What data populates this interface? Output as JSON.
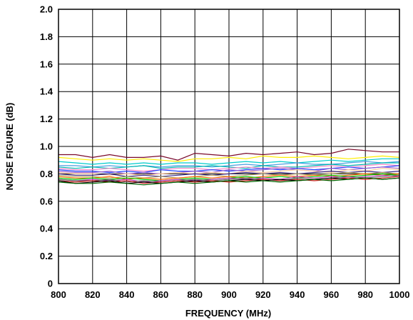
{
  "chart_data": {
    "type": "line",
    "xlabel": "FREQUENCY (MHz)",
    "ylabel": "NOISE FIGURE (dB)",
    "xlim": [
      800,
      1000
    ],
    "ylim": [
      0,
      2.0
    ],
    "x_ticks": [
      "800",
      "820",
      "840",
      "860",
      "880",
      "900",
      "920",
      "940",
      "960",
      "980",
      "1000"
    ],
    "y_ticks": [
      "0",
      "0.2",
      "0.4",
      "0.6",
      "0.8",
      "1.0",
      "1.2",
      "1.4",
      "1.6",
      "1.8",
      "2.0"
    ],
    "grid": true,
    "x": [
      800,
      810,
      820,
      830,
      840,
      850,
      860,
      870,
      880,
      890,
      900,
      910,
      920,
      930,
      940,
      950,
      960,
      970,
      980,
      990,
      1000
    ],
    "series": [
      {
        "color": "#7a0a2a",
        "values": [
          0.94,
          0.94,
          0.92,
          0.94,
          0.92,
          0.92,
          0.93,
          0.9,
          0.95,
          0.94,
          0.93,
          0.95,
          0.94,
          0.95,
          0.96,
          0.94,
          0.95,
          0.98,
          0.97,
          0.96,
          0.96
        ]
      },
      {
        "color": "#ffee00",
        "values": [
          0.92,
          0.91,
          0.9,
          0.91,
          0.9,
          0.91,
          0.9,
          0.89,
          0.91,
          0.91,
          0.92,
          0.91,
          0.93,
          0.92,
          0.92,
          0.93,
          0.92,
          0.91,
          0.92,
          0.93,
          0.92
        ]
      },
      {
        "color": "#00cccc",
        "values": [
          0.89,
          0.88,
          0.87,
          0.88,
          0.87,
          0.88,
          0.87,
          0.88,
          0.88,
          0.87,
          0.88,
          0.89,
          0.88,
          0.89,
          0.88,
          0.89,
          0.9,
          0.89,
          0.9,
          0.91,
          0.91
        ]
      },
      {
        "color": "#4a9fe0",
        "values": [
          0.86,
          0.86,
          0.85,
          0.86,
          0.85,
          0.86,
          0.85,
          0.86,
          0.86,
          0.85,
          0.86,
          0.87,
          0.86,
          0.87,
          0.88,
          0.87,
          0.87,
          0.88,
          0.89,
          0.88,
          0.89
        ]
      },
      {
        "color": "#00b8b0",
        "values": [
          0.85,
          0.84,
          0.85,
          0.84,
          0.85,
          0.86,
          0.84,
          0.85,
          0.85,
          0.86,
          0.85,
          0.84,
          0.86,
          0.85,
          0.85,
          0.86,
          0.87,
          0.86,
          0.87,
          0.88,
          0.88
        ]
      },
      {
        "color": "#ff88c8",
        "values": [
          0.84,
          0.83,
          0.83,
          0.84,
          0.83,
          0.82,
          0.83,
          0.84,
          0.84,
          0.83,
          0.84,
          0.85,
          0.84,
          0.85,
          0.84,
          0.85,
          0.86,
          0.85,
          0.86,
          0.87,
          0.86
        ]
      },
      {
        "color": "#2244ff",
        "values": [
          0.83,
          0.82,
          0.82,
          0.81,
          0.82,
          0.81,
          0.83,
          0.82,
          0.82,
          0.83,
          0.82,
          0.83,
          0.84,
          0.83,
          0.84,
          0.83,
          0.84,
          0.85,
          0.84,
          0.85,
          0.86
        ]
      },
      {
        "color": "#9a60d0",
        "values": [
          0.82,
          0.81,
          0.81,
          0.82,
          0.8,
          0.81,
          0.8,
          0.81,
          0.82,
          0.81,
          0.83,
          0.82,
          0.83,
          0.84,
          0.83,
          0.82,
          0.84,
          0.83,
          0.84,
          0.85,
          0.84
        ]
      },
      {
        "color": "#ffcc99",
        "values": [
          0.81,
          0.8,
          0.8,
          0.79,
          0.8,
          0.79,
          0.8,
          0.81,
          0.8,
          0.81,
          0.8,
          0.82,
          0.81,
          0.82,
          0.83,
          0.82,
          0.81,
          0.83,
          0.82,
          0.84,
          0.83
        ]
      },
      {
        "color": "#3a2a8a",
        "values": [
          0.8,
          0.79,
          0.79,
          0.8,
          0.78,
          0.79,
          0.78,
          0.79,
          0.8,
          0.79,
          0.8,
          0.81,
          0.8,
          0.81,
          0.8,
          0.81,
          0.82,
          0.81,
          0.82,
          0.81,
          0.82
        ]
      },
      {
        "color": "#b0a060",
        "values": [
          0.79,
          0.78,
          0.78,
          0.77,
          0.78,
          0.77,
          0.78,
          0.77,
          0.78,
          0.79,
          0.78,
          0.79,
          0.8,
          0.79,
          0.8,
          0.79,
          0.8,
          0.81,
          0.8,
          0.81,
          0.8
        ]
      },
      {
        "color": "#ff6600",
        "values": [
          0.78,
          0.77,
          0.77,
          0.78,
          0.76,
          0.77,
          0.76,
          0.77,
          0.78,
          0.77,
          0.78,
          0.77,
          0.78,
          0.79,
          0.78,
          0.79,
          0.78,
          0.79,
          0.8,
          0.79,
          0.8
        ]
      },
      {
        "color": "#00cc00",
        "values": [
          0.77,
          0.76,
          0.77,
          0.76,
          0.77,
          0.76,
          0.75,
          0.76,
          0.77,
          0.76,
          0.77,
          0.78,
          0.77,
          0.78,
          0.77,
          0.78,
          0.79,
          0.78,
          0.79,
          0.8,
          0.79
        ]
      },
      {
        "color": "#c040c0",
        "values": [
          0.76,
          0.75,
          0.76,
          0.75,
          0.76,
          0.74,
          0.75,
          0.76,
          0.75,
          0.76,
          0.77,
          0.76,
          0.77,
          0.76,
          0.78,
          0.77,
          0.78,
          0.77,
          0.78,
          0.79,
          0.78
        ]
      },
      {
        "color": "#606060",
        "values": [
          0.76,
          0.75,
          0.75,
          0.76,
          0.74,
          0.75,
          0.74,
          0.75,
          0.76,
          0.75,
          0.76,
          0.77,
          0.76,
          0.75,
          0.77,
          0.76,
          0.77,
          0.78,
          0.77,
          0.78,
          0.79
        ]
      },
      {
        "color": "#d02020",
        "values": [
          0.75,
          0.74,
          0.75,
          0.74,
          0.75,
          0.73,
          0.74,
          0.75,
          0.74,
          0.75,
          0.74,
          0.75,
          0.76,
          0.75,
          0.76,
          0.75,
          0.76,
          0.77,
          0.76,
          0.77,
          0.78
        ]
      },
      {
        "color": "#000000",
        "values": [
          0.75,
          0.73,
          0.74,
          0.75,
          0.73,
          0.74,
          0.73,
          0.74,
          0.75,
          0.74,
          0.75,
          0.76,
          0.75,
          0.76,
          0.75,
          0.76,
          0.77,
          0.76,
          0.77,
          0.76,
          0.77
        ]
      },
      {
        "color": "#006600",
        "values": [
          0.74,
          0.73,
          0.73,
          0.74,
          0.73,
          0.72,
          0.73,
          0.74,
          0.73,
          0.74,
          0.75,
          0.74,
          0.75,
          0.74,
          0.75,
          0.76,
          0.75,
          0.76,
          0.77,
          0.76,
          0.77
        ]
      }
    ]
  }
}
